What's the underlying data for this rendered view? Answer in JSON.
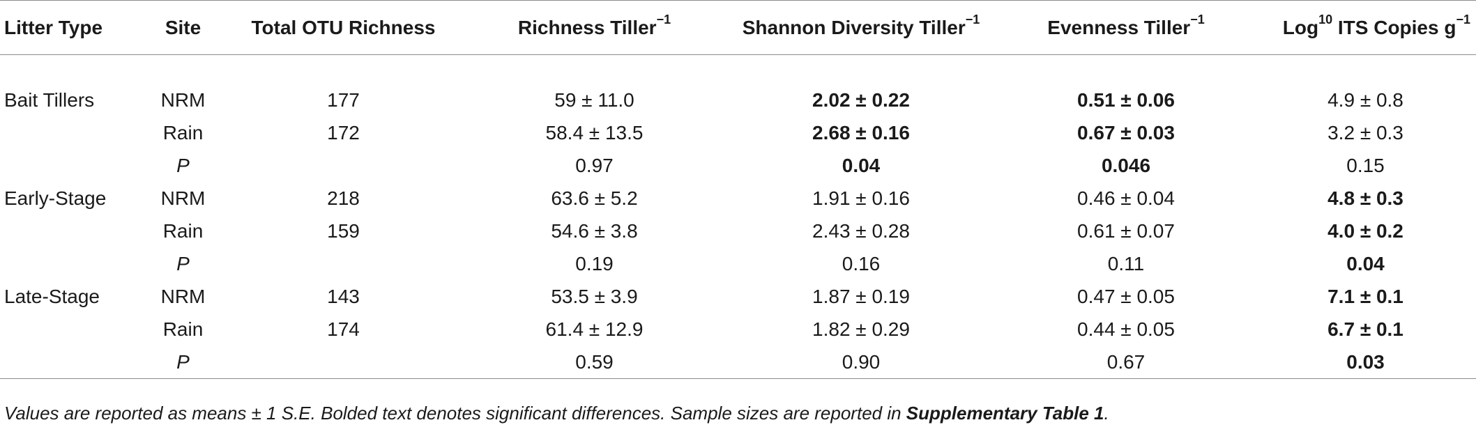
{
  "headers": {
    "litter_type": "Litter Type",
    "site": "Site",
    "total_otu": "Total OTU Richness",
    "richness": "Richness Tiller",
    "shannon": "Shannon Diversity Tiller",
    "evenness": "Evenness Tiller",
    "its_prefix": "Log",
    "its_sup": "10",
    "its_suffix": " ITS Copies g",
    "neg_one": "−1"
  },
  "rows": [
    {
      "litter_type": "Bait Tillers",
      "site": "NRM",
      "total": "177",
      "richness": "59 ± 11.0",
      "shannon": "2.02 ± 0.22",
      "evenness": "0.51 ± 0.06",
      "its": "4.9 ± 0.8"
    },
    {
      "litter_type": "",
      "site": "Rain",
      "total": "172",
      "richness": "58.4 ± 13.5",
      "shannon": "2.68 ± 0.16",
      "evenness": "0.67 ± 0.03",
      "its": "3.2 ± 0.3"
    },
    {
      "litter_type": "",
      "site": "P",
      "total": "",
      "richness": "0.97",
      "shannon": "0.04",
      "evenness": "0.046",
      "its": "0.15"
    },
    {
      "litter_type": "Early-Stage",
      "site": "NRM",
      "total": "218",
      "richness": "63.6 ± 5.2",
      "shannon": "1.91 ± 0.16",
      "evenness": "0.46 ± 0.04",
      "its": "4.8 ± 0.3"
    },
    {
      "litter_type": "",
      "site": "Rain",
      "total": "159",
      "richness": "54.6 ± 3.8",
      "shannon": "2.43 ± 0.28",
      "evenness": "0.61 ± 0.07",
      "its": "4.0 ± 0.2"
    },
    {
      "litter_type": "",
      "site": "P",
      "total": "",
      "richness": "0.19",
      "shannon": "0.16",
      "evenness": "0.11",
      "its": "0.04"
    },
    {
      "litter_type": "Late-Stage",
      "site": "NRM",
      "total": "143",
      "richness": "53.5 ± 3.9",
      "shannon": "1.87 ± 0.19",
      "evenness": "0.47 ± 0.05",
      "its": "7.1 ± 0.1"
    },
    {
      "litter_type": "",
      "site": "Rain",
      "total": "174",
      "richness": "61.4 ± 12.9",
      "shannon": "1.82 ± 0.29",
      "evenness": "0.44 ± 0.05",
      "its": "6.7 ± 0.1"
    },
    {
      "litter_type": "",
      "site": "P",
      "total": "",
      "richness": "0.59",
      "shannon": "0.90",
      "evenness": "0.67",
      "its": "0.03"
    }
  ],
  "caption": {
    "text": "Values are reported as means ± 1 S.E. Bolded text denotes significant differences. Sample sizes are reported in ",
    "bold": "Supplementary Table 1",
    "end": "."
  }
}
